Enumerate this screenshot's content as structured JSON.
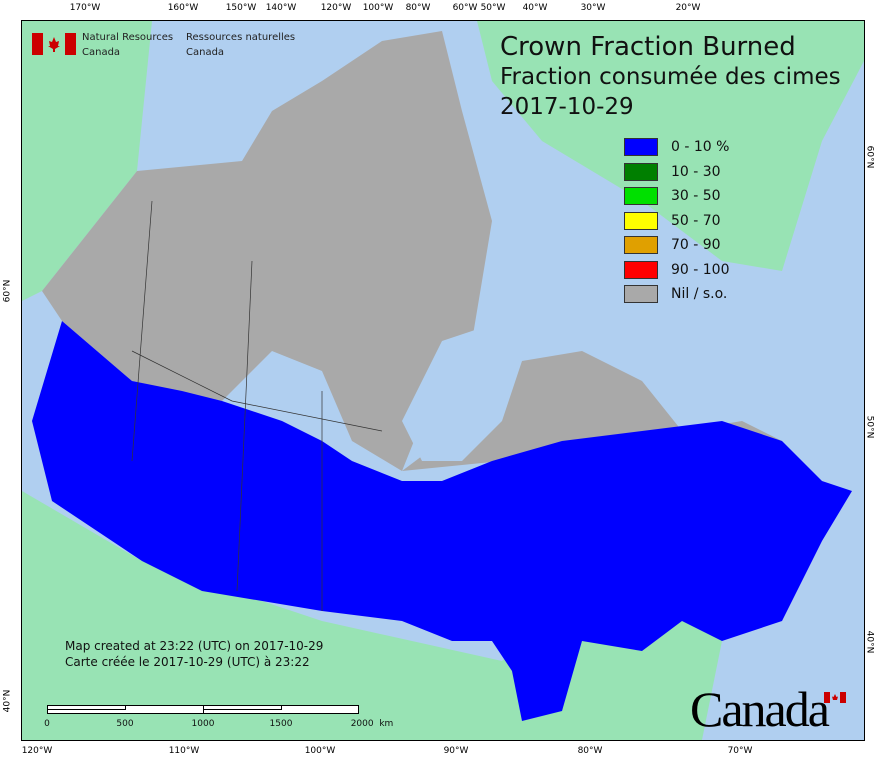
{
  "title": {
    "line1": "Crown Fraction Burned",
    "line2": "Fraction consumée des cimes",
    "date": "2017-10-29"
  },
  "agency": {
    "en_line1": "Natural Resources",
    "en_line2": "Canada",
    "fr_line1": "Ressources naturelles",
    "fr_line2": "Canada"
  },
  "legend": [
    {
      "label": "0 - 10 %",
      "color": "#0000ff"
    },
    {
      "label": "10 - 30",
      "color": "#007f00"
    },
    {
      "label": "30 - 50",
      "color": "#00e000"
    },
    {
      "label": "50 - 70",
      "color": "#ffff00"
    },
    {
      "label": "70 - 90",
      "color": "#e0a000"
    },
    {
      "label": "90 - 100",
      "color": "#ff0000"
    },
    {
      "label": "Nil / s.o.",
      "color": "#a9a9a9"
    }
  ],
  "created": {
    "en": "Map created at 23:22 (UTC) on 2017-10-29",
    "fr": "Carte créée le 2017-10-29 (UTC) à 23:22"
  },
  "scale_bar": {
    "labels": [
      "0",
      "500",
      "1000",
      "1500",
      "2000  km"
    ]
  },
  "wordmark": "Canada",
  "axes": {
    "top": [
      "170°W",
      "160°W",
      "150°W",
      "140°W",
      "120°W",
      "100°W",
      "80°W",
      "60°W",
      "50°W",
      "40°W",
      "30°W",
      "20°W"
    ],
    "bottom": [
      "120°W",
      "110°W",
      "100°W",
      "90°W",
      "80°W",
      "70°W"
    ],
    "left": [
      "60°N",
      "40°N"
    ],
    "right": [
      "60°N",
      "50°N",
      "40°N"
    ]
  },
  "colors": {
    "ocean": "#b0cff0",
    "foreign_land": "#98e3b4",
    "no_data": "#a9a9a9",
    "fire_low": "#0000ff"
  }
}
